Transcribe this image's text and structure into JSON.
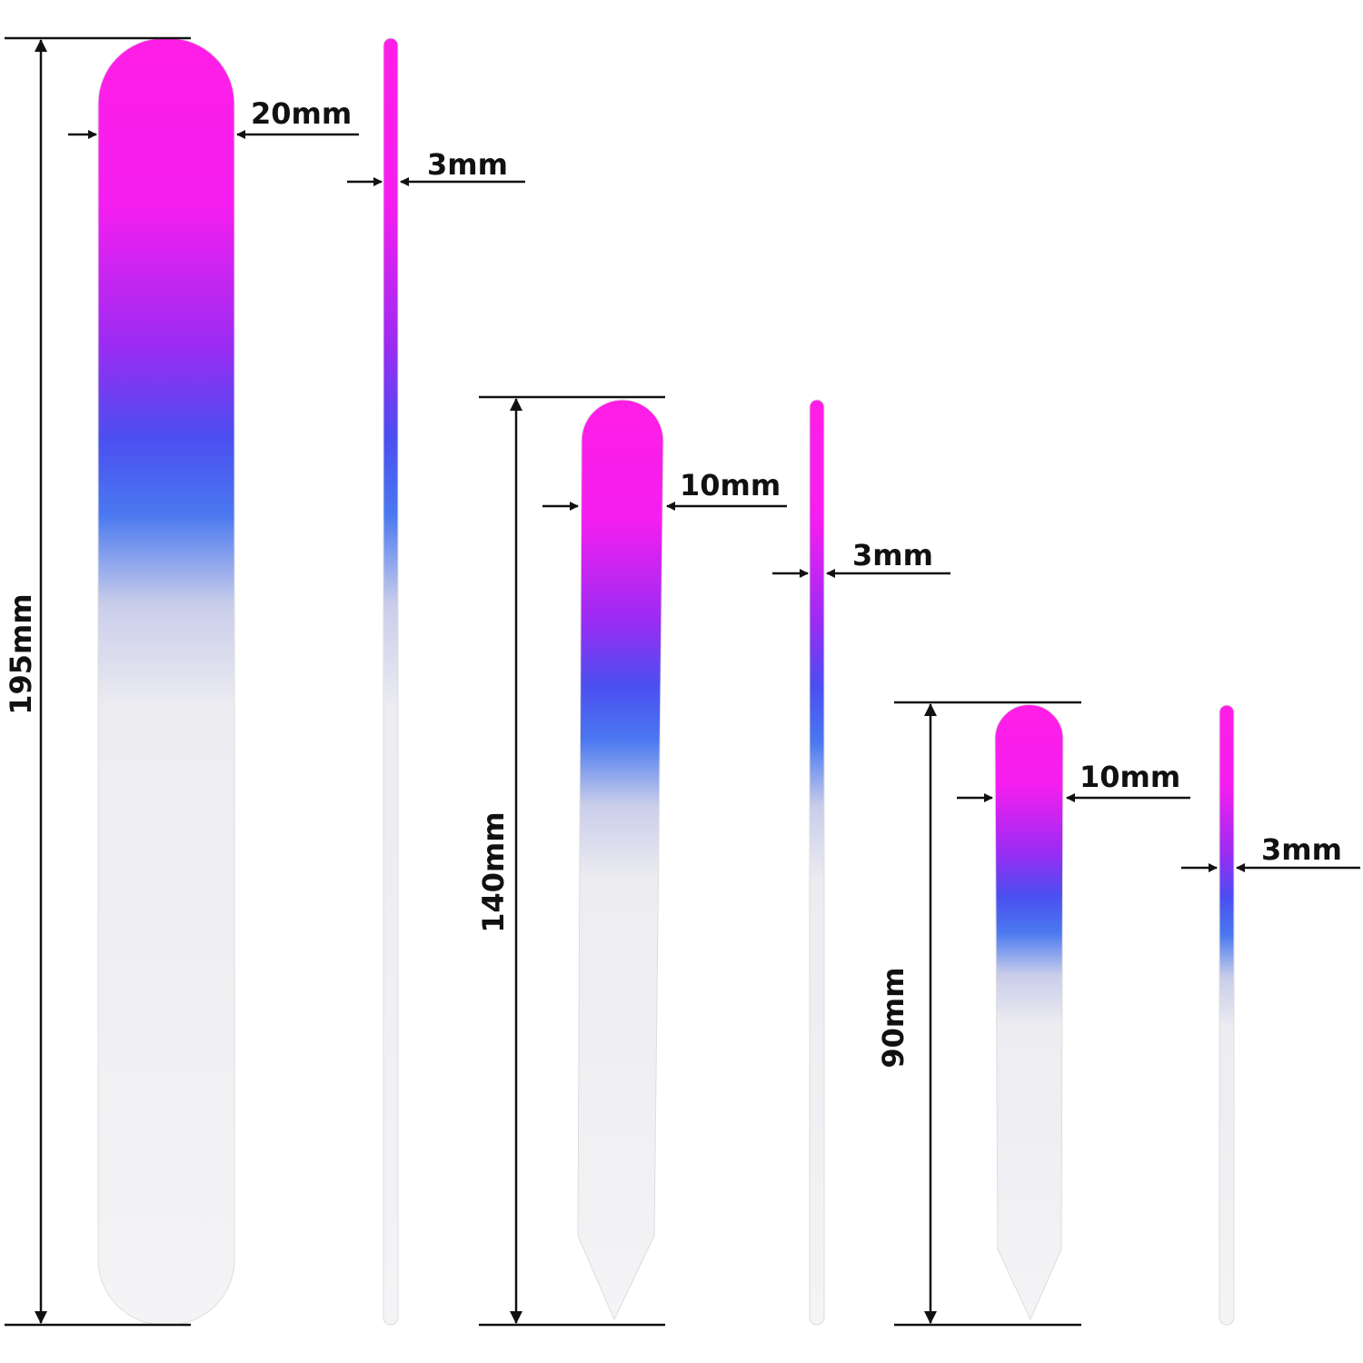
{
  "files": [
    {
      "length": "195mm",
      "width": "20mm",
      "thickness": "3mm"
    },
    {
      "length": "140mm",
      "width": "10mm",
      "thickness": "3mm"
    },
    {
      "length": "90mm",
      "width": "10mm",
      "thickness": "3mm"
    }
  ]
}
